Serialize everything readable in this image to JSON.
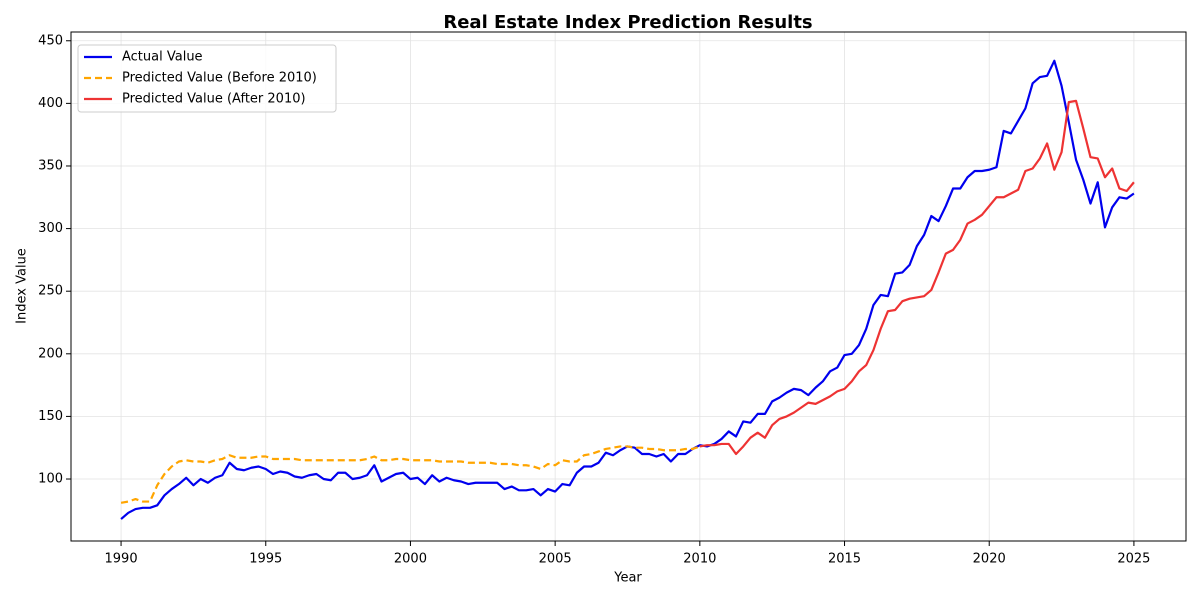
{
  "chart_data": {
    "type": "line",
    "title": "Real Estate Index Prediction Results",
    "x_label": "Year",
    "y_label": "Index Value",
    "xlim": [
      1988.27,
      2026.8
    ],
    "ylim": [
      50.5,
      457
    ],
    "xticks": [
      1990,
      1995,
      2000,
      2005,
      2010,
      2015,
      2020,
      2025
    ],
    "yticks": [
      100,
      150,
      200,
      250,
      300,
      350,
      400,
      450
    ],
    "grid": true,
    "legend": "upper-left",
    "x": [
      1990,
      1990.25,
      1990.5,
      1990.75,
      1991,
      1991.25,
      1991.5,
      1991.75,
      1992,
      1992.25,
      1992.5,
      1992.75,
      1993,
      1993.25,
      1993.5,
      1993.75,
      1994,
      1994.25,
      1994.5,
      1994.75,
      1995,
      1995.25,
      1995.5,
      1995.75,
      1996,
      1996.25,
      1996.5,
      1996.75,
      1997,
      1997.25,
      1997.5,
      1997.75,
      1998,
      1998.25,
      1998.5,
      1998.75,
      1999,
      1999.25,
      1999.5,
      1999.75,
      2000,
      2000.25,
      2000.5,
      2000.75,
      2001,
      2001.25,
      2001.5,
      2001.75,
      2002,
      2002.25,
      2002.5,
      2002.75,
      2003,
      2003.25,
      2003.5,
      2003.75,
      2004,
      2004.25,
      2004.5,
      2004.75,
      2005,
      2005.25,
      2005.5,
      2005.75,
      2006,
      2006.25,
      2006.5,
      2006.75,
      2007,
      2007.25,
      2007.5,
      2007.75,
      2008,
      2008.25,
      2008.5,
      2008.75,
      2009,
      2009.25,
      2009.5,
      2009.75,
      2010,
      2010.25,
      2010.5,
      2010.75,
      2011,
      2011.25,
      2011.5,
      2011.75,
      2012,
      2012.25,
      2012.5,
      2012.75,
      2013,
      2013.25,
      2013.5,
      2013.75,
      2014,
      2014.25,
      2014.5,
      2014.75,
      2015,
      2015.25,
      2015.5,
      2015.75,
      2016,
      2016.25,
      2016.5,
      2016.75,
      2017,
      2017.25,
      2017.5,
      2017.75,
      2018,
      2018.25,
      2018.5,
      2018.75,
      2019,
      2019.25,
      2019.5,
      2019.75,
      2020,
      2020.25,
      2020.5,
      2020.75,
      2021,
      2021.25,
      2021.5,
      2021.75,
      2022,
      2022.25,
      2022.5,
      2022.75,
      2023,
      2023.25,
      2023.5,
      2023.75,
      2024,
      2024.25,
      2024.5,
      2024.75,
      2025
    ],
    "series": [
      {
        "name": "Actual Value",
        "color": "#0000ee",
        "style": "solid",
        "values": [
          68,
          73,
          76,
          77,
          77,
          79,
          87,
          92,
          96,
          101,
          95,
          100,
          97,
          101,
          103,
          113,
          108,
          107,
          109,
          110,
          108,
          104,
          106,
          105,
          102,
          101,
          103,
          104,
          100,
          99,
          105,
          105,
          100,
          101,
          103,
          111,
          98,
          101,
          104,
          105,
          100,
          101,
          96,
          103,
          98,
          101,
          99,
          98,
          96,
          97,
          97,
          97,
          97,
          92,
          94,
          91,
          91,
          92,
          87,
          92,
          90,
          96,
          95,
          105,
          110,
          110,
          113,
          121,
          119,
          123,
          126,
          125,
          120,
          120,
          118,
          120,
          114,
          120,
          120,
          124,
          127,
          126,
          128,
          132,
          138,
          134,
          146,
          145,
          152,
          152,
          162,
          165,
          169,
          172,
          171,
          167,
          173,
          178,
          186,
          189,
          199,
          200,
          207,
          220,
          239,
          247,
          246,
          264,
          265,
          271,
          286,
          295,
          310,
          306,
          318,
          332,
          332,
          341,
          346,
          346,
          347,
          349,
          378,
          376,
          386,
          396,
          416,
          421,
          422,
          434,
          414,
          385,
          355,
          339,
          320,
          337,
          301,
          317,
          325,
          324,
          328
        ]
      },
      {
        "name": "Predicted Value (Before 2010)",
        "color": "#ffa500",
        "style": "dashed",
        "values": [
          81,
          82,
          84,
          82,
          82,
          95,
          104,
          110,
          114,
          115,
          114,
          114,
          113,
          115,
          116,
          119,
          117,
          117,
          117,
          118,
          118,
          116,
          116,
          116,
          116,
          115,
          115,
          115,
          115,
          115,
          115,
          115,
          115,
          115,
          116,
          118,
          115,
          115,
          116,
          116,
          115,
          115,
          115,
          115,
          114,
          114,
          114,
          114,
          113,
          113,
          113,
          113,
          112,
          112,
          112,
          111,
          111,
          110,
          108,
          112,
          111,
          115,
          114,
          114,
          119,
          120,
          122,
          124,
          125,
          126,
          126,
          125,
          125,
          124,
          124,
          123,
          123,
          123,
          124,
          124,
          126,
          null,
          null,
          null,
          null,
          null,
          null,
          null,
          null,
          null,
          null,
          null,
          null,
          null,
          null,
          null,
          null,
          null,
          null,
          null,
          null,
          null,
          null,
          null,
          null,
          null,
          null,
          null,
          null,
          null,
          null,
          null,
          null,
          null,
          null,
          null,
          null,
          null,
          null,
          null,
          null,
          null,
          null,
          null,
          null,
          null,
          null,
          null,
          null,
          null,
          null,
          null,
          null,
          null,
          null,
          null,
          null,
          null,
          null,
          null,
          null
        ]
      },
      {
        "name": "Predicted Value (After 2010)",
        "color": "#ee3333",
        "style": "solid",
        "values": [
          null,
          null,
          null,
          null,
          null,
          null,
          null,
          null,
          null,
          null,
          null,
          null,
          null,
          null,
          null,
          null,
          null,
          null,
          null,
          null,
          null,
          null,
          null,
          null,
          null,
          null,
          null,
          null,
          null,
          null,
          null,
          null,
          null,
          null,
          null,
          null,
          null,
          null,
          null,
          null,
          null,
          null,
          null,
          null,
          null,
          null,
          null,
          null,
          null,
          null,
          null,
          null,
          null,
          null,
          null,
          null,
          null,
          null,
          null,
          null,
          null,
          null,
          null,
          null,
          null,
          null,
          null,
          null,
          null,
          null,
          null,
          null,
          null,
          null,
          null,
          null,
          null,
          null,
          null,
          null,
          126,
          127,
          127,
          128,
          128,
          120,
          126,
          133,
          137,
          133,
          143,
          148,
          150,
          153,
          157,
          161,
          160,
          163,
          166,
          170,
          172,
          178,
          186,
          191,
          203,
          220,
          234,
          235,
          242,
          244,
          245,
          246,
          251,
          265,
          280,
          283,
          291,
          304,
          307,
          311,
          318,
          325,
          325,
          328,
          331,
          346,
          348,
          356,
          368,
          347,
          361,
          401,
          402,
          380,
          357,
          356,
          341,
          348,
          332,
          330,
          337
        ]
      }
    ]
  }
}
